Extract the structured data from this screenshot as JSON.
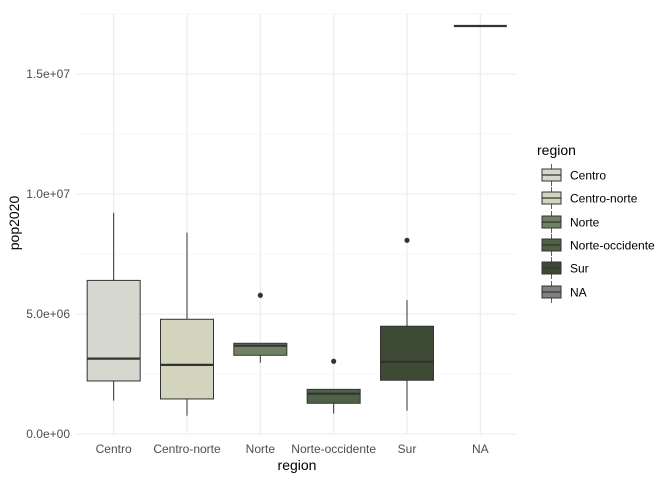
{
  "chart_data": {
    "type": "boxplot",
    "xlabel": "region",
    "ylabel": "pop2020",
    "ylim": [
      0,
      17500000
    ],
    "y_ticks": [
      0,
      5000000,
      10000000,
      15000000
    ],
    "y_tick_labels": [
      "0.0e+00",
      "5.0e+06",
      "1.0e+07",
      "1.5e+07"
    ],
    "grid": true,
    "legend_position": "right",
    "legend_title": "region",
    "categories": [
      "Centro",
      "Centro-norte",
      "Norte",
      "Norte-occidente",
      "Sur",
      "NA"
    ],
    "boxes": [
      {
        "category": "Centro",
        "min": 1390000,
        "q1": 2210000,
        "median": 3140000,
        "q3": 6400000,
        "max": 9220000,
        "outliers": [],
        "color": "#d6d7cf"
      },
      {
        "category": "Centro-norte",
        "min": 760000,
        "q1": 1460000,
        "median": 2880000,
        "q3": 4780000,
        "max": 8390000,
        "outliers": [],
        "color": "#d3d4bd"
      },
      {
        "category": "Norte",
        "min": 2970000,
        "q1": 3280000,
        "median": 3680000,
        "q3": 3780000,
        "max": 3780000,
        "outliers": [
          5780000
        ],
        "color": "#6f8163"
      },
      {
        "category": "Norte-occidente",
        "min": 850000,
        "q1": 1280000,
        "median": 1680000,
        "q3": 1860000,
        "max": 1860000,
        "outliers": [
          3030000
        ],
        "color": "#4f6146"
      },
      {
        "category": "Sur",
        "min": 970000,
        "q1": 2240000,
        "median": 3010000,
        "q3": 4490000,
        "max": 5580000,
        "outliers": [
          8070000
        ],
        "color": "#3d4b34"
      },
      {
        "category": "NA",
        "min": 17000000,
        "q1": 17000000,
        "median": 17000000,
        "q3": 17000000,
        "max": 17000000,
        "outliers": [],
        "color": "#808080"
      }
    ]
  }
}
